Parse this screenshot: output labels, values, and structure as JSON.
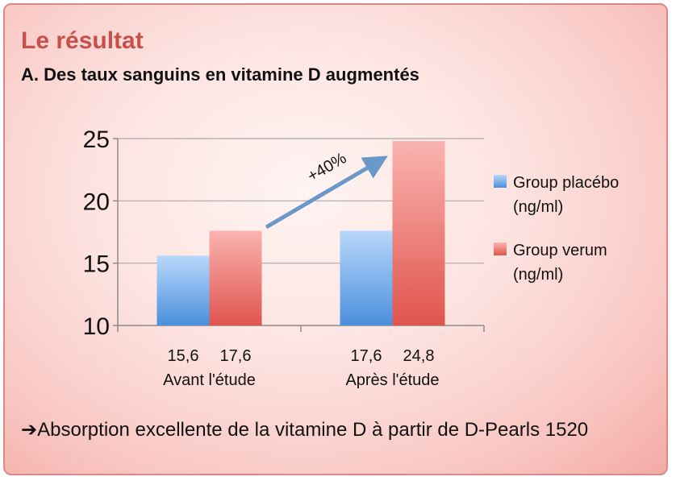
{
  "header": {
    "title": "Le résultat",
    "subtitle": "A. Des taux sanguins en vitamine D augmentés"
  },
  "colors": {
    "placebo": "#5a9fe6",
    "verum": "#e86560",
    "arrow": "#6a98c9"
  },
  "annotation": {
    "text": "+40%"
  },
  "footer": {
    "arrow_glyph": "➔",
    "text": "Absorption excellente de la vitamine D à partir de D-Pearls 1520"
  },
  "chart_data": {
    "type": "bar",
    "categories": [
      "Avant l'étude",
      "Après l'étude"
    ],
    "series": [
      {
        "name": "Group placébo (ng/ml)",
        "values": [
          15.6,
          17.6
        ],
        "value_labels": [
          "15,6",
          "17,6"
        ]
      },
      {
        "name": "Group verum (ng/ml)",
        "values": [
          17.6,
          24.8
        ],
        "value_labels": [
          "17,6",
          "24,8"
        ]
      }
    ],
    "yticks": [
      "10",
      "15",
      "20",
      "25"
    ],
    "ylim": [
      10,
      25
    ],
    "grid": true,
    "legend_position": "right"
  }
}
